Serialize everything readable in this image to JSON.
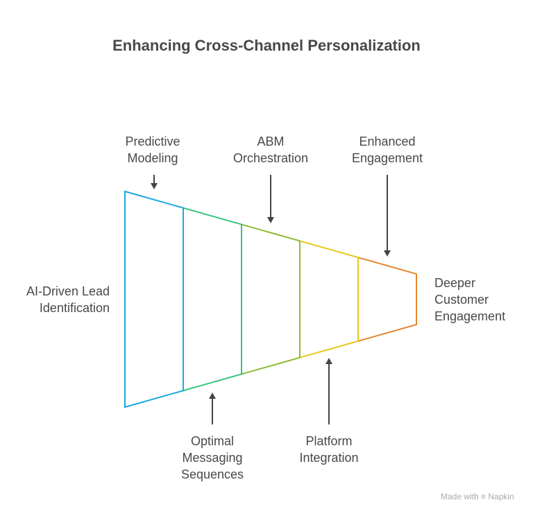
{
  "title": "Enhancing Cross-Channel Personalization",
  "stages": [
    {
      "label": "AI-Driven Lead\nIdentification",
      "color": "#1BA9DF"
    },
    {
      "label": "Optimal\nMessaging\nSequences",
      "color": "#33C47C"
    },
    {
      "label": "ABM\nOrchestration",
      "color": "#8DBB32"
    },
    {
      "label": "Platform\nIntegration",
      "color": "#E6C817"
    },
    {
      "label": "Enhanced\nEngagement",
      "color": "#E5862E"
    }
  ],
  "annotations": {
    "predictive": "Predictive\nModeling",
    "outcome": "Deeper\nCustomer\nEngagement"
  },
  "arrow_color": "#444444",
  "watermark": "Made with ≡ Napkin"
}
